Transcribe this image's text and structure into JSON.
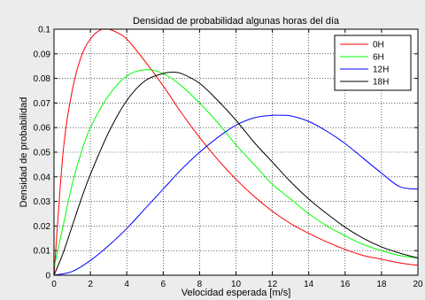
{
  "chart_data": {
    "type": "line",
    "title": "Densidad de probabilidad algunas horas del día",
    "xlabel": "Velocidad esperada [m/s]",
    "ylabel": "Densidad de probabilidad",
    "xlim": [
      0,
      20
    ],
    "ylim": [
      0,
      0.1
    ],
    "x_ticks": [
      "0",
      "2",
      "4",
      "6",
      "8",
      "10",
      "12",
      "14",
      "16",
      "18",
      "20"
    ],
    "y_ticks": [
      "0",
      "0.01",
      "0.02",
      "0.03",
      "0.04",
      "0.05",
      "0.06",
      "0.07",
      "0.08",
      "0.09",
      "0.1"
    ],
    "grid": true,
    "legend_position": "top-right",
    "series": [
      {
        "name": "0H",
        "color": "#ff0000",
        "x": [
          0,
          0.5,
          1,
          1.5,
          2,
          2.5,
          3,
          3.5,
          4,
          5,
          6,
          7,
          8,
          9,
          10,
          11,
          12,
          13,
          14,
          15,
          16,
          17,
          18,
          19,
          20
        ],
        "y": [
          0,
          0.05,
          0.075,
          0.089,
          0.096,
          0.0995,
          0.1,
          0.0985,
          0.096,
          0.087,
          0.077,
          0.066,
          0.056,
          0.047,
          0.039,
          0.032,
          0.026,
          0.021,
          0.017,
          0.0135,
          0.0105,
          0.008,
          0.0065,
          0.005,
          0.004
        ]
      },
      {
        "name": "6H",
        "color": "#00ff00",
        "x": [
          0,
          0.5,
          1,
          1.5,
          2,
          3,
          4,
          5,
          6,
          7,
          8,
          9,
          10,
          11,
          12,
          13,
          14,
          15,
          16,
          17,
          18,
          19,
          20
        ],
        "y": [
          0.003,
          0.02,
          0.037,
          0.05,
          0.06,
          0.073,
          0.081,
          0.0835,
          0.082,
          0.077,
          0.07,
          0.062,
          0.053,
          0.045,
          0.037,
          0.031,
          0.025,
          0.02,
          0.016,
          0.0125,
          0.01,
          0.008,
          0.007
        ]
      },
      {
        "name": "12H",
        "color": "#0000ff",
        "x": [
          0,
          1,
          2,
          3,
          4,
          5,
          6,
          7,
          8,
          9,
          10,
          11,
          12,
          12.5,
          13,
          14,
          15,
          16,
          17,
          18,
          19,
          20
        ],
        "y": [
          0,
          0.0015,
          0.006,
          0.012,
          0.019,
          0.027,
          0.035,
          0.043,
          0.05,
          0.056,
          0.061,
          0.064,
          0.065,
          0.065,
          0.0648,
          0.0625,
          0.0585,
          0.0535,
          0.0475,
          0.0415,
          0.036,
          0.035
        ]
      },
      {
        "name": "18H",
        "color": "#000000",
        "x": [
          0,
          0.5,
          1,
          1.5,
          2,
          3,
          4,
          5,
          6,
          6.5,
          7,
          8,
          9,
          10,
          11,
          12,
          13,
          14,
          15,
          16,
          17,
          18,
          19,
          20
        ],
        "y": [
          0,
          0.009,
          0.02,
          0.031,
          0.041,
          0.058,
          0.071,
          0.079,
          0.082,
          0.0825,
          0.082,
          0.078,
          0.071,
          0.063,
          0.054,
          0.046,
          0.038,
          0.031,
          0.025,
          0.0195,
          0.015,
          0.0115,
          0.009,
          0.007
        ]
      }
    ]
  }
}
